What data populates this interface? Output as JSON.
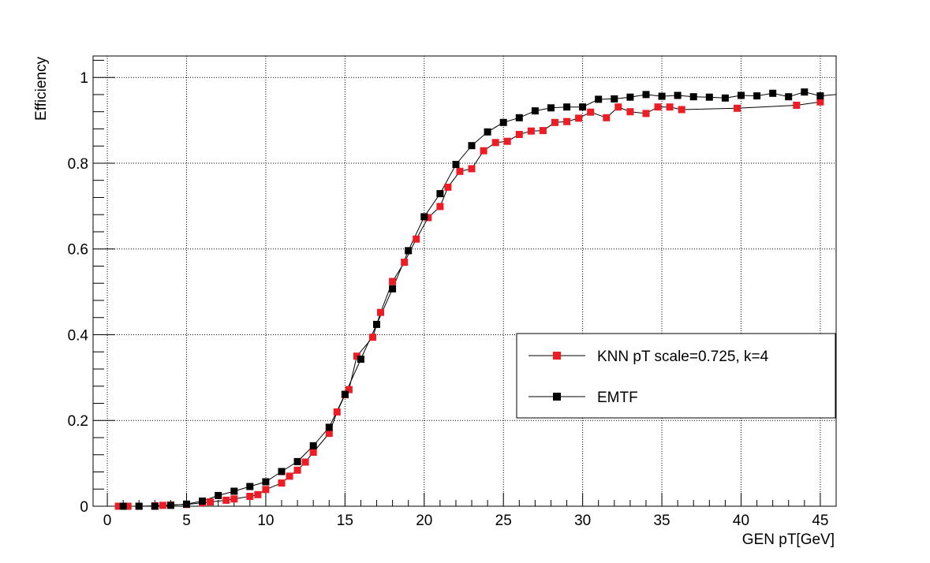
{
  "chart_data": {
    "type": "line",
    "title": "",
    "xlabel": "GEN pT[GeV]",
    "ylabel": "Efficiency",
    "xlim": [
      -0.9,
      46
    ],
    "ylim": [
      0,
      1.05
    ],
    "grid": true,
    "legend_position": "right",
    "x_ticks": [
      "0",
      "5",
      "10",
      "15",
      "20",
      "25",
      "30",
      "35",
      "40",
      "45"
    ],
    "y_ticks": [
      "0",
      "0.2",
      "0.4",
      "0.6",
      "0.8",
      "1"
    ],
    "series": [
      {
        "name": "KNN pT scale=0.725, k=4",
        "color": "#ee1c25",
        "x": [
          0.7,
          1.3,
          2,
          3,
          3.5,
          4,
          5,
          6,
          6.5,
          7.5,
          8,
          9,
          9.5,
          10,
          11,
          11.5,
          12,
          12.5,
          13,
          14,
          14.5,
          15,
          15.25,
          15.75,
          16.75,
          17.25,
          18,
          18.75,
          19.5,
          20.25,
          21,
          21.5,
          22.25,
          23,
          23.75,
          24.5,
          25.25,
          26,
          26.75,
          27.5,
          28.25,
          29,
          29.75,
          30.5,
          31.5,
          32.25,
          33,
          34,
          34.75,
          35.5,
          36.25,
          39.75,
          43.5,
          45
        ],
        "values": [
          0.0,
          0.0,
          0.0,
          0.001,
          0.002,
          0.003,
          0.004,
          0.008,
          0.01,
          0.014,
          0.017,
          0.023,
          0.027,
          0.039,
          0.054,
          0.07,
          0.084,
          0.103,
          0.126,
          0.17,
          0.22,
          0.26,
          0.272,
          0.35,
          0.394,
          0.452,
          0.524,
          0.569,
          0.623,
          0.673,
          0.699,
          0.744,
          0.781,
          0.787,
          0.829,
          0.848,
          0.851,
          0.867,
          0.875,
          0.876,
          0.895,
          0.897,
          0.905,
          0.919,
          0.906,
          0.931,
          0.92,
          0.916,
          0.931,
          0.931,
          0.925,
          0.928,
          0.935,
          0.943
        ]
      },
      {
        "name": "EMTF",
        "color": "#000000",
        "x": [
          1,
          2,
          3,
          4,
          5,
          6,
          7,
          8,
          9,
          10,
          11,
          12,
          13,
          14,
          15,
          16,
          17,
          18,
          19,
          20,
          21,
          22,
          23,
          24,
          25,
          26,
          27,
          28,
          29,
          30,
          31,
          32,
          33,
          34,
          35,
          36,
          37,
          38,
          39,
          40,
          41,
          42,
          43,
          44,
          45
        ],
        "values": [
          0.0,
          0.0,
          0.0,
          0.002,
          0.005,
          0.012,
          0.025,
          0.035,
          0.046,
          0.057,
          0.081,
          0.104,
          0.141,
          0.184,
          0.261,
          0.343,
          0.424,
          0.507,
          0.596,
          0.675,
          0.729,
          0.797,
          0.841,
          0.873,
          0.895,
          0.906,
          0.922,
          0.929,
          0.931,
          0.931,
          0.949,
          0.95,
          0.954,
          0.96,
          0.956,
          0.958,
          0.955,
          0.954,
          0.952,
          0.958,
          0.957,
          0.963,
          0.955,
          0.966,
          0.957
        ]
      }
    ]
  }
}
